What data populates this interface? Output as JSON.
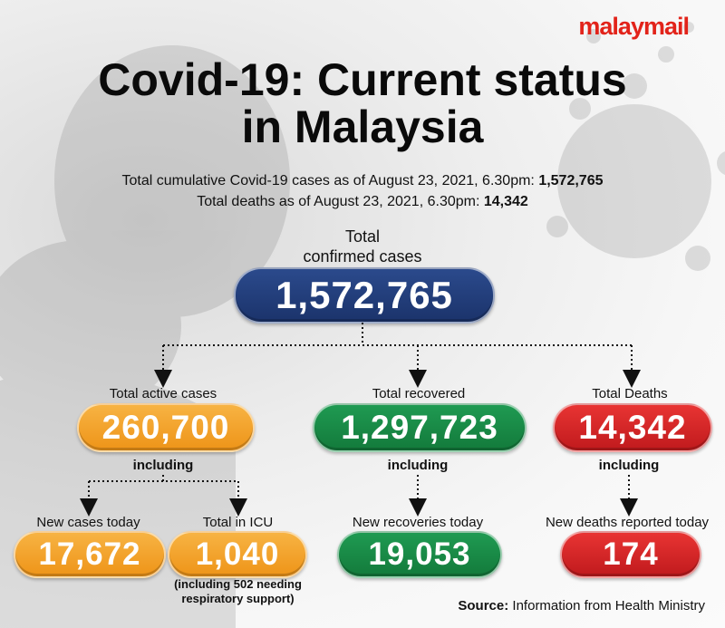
{
  "brand": {
    "logo_text": "malaymail",
    "logo_color": "#e2231a"
  },
  "title": {
    "line1": "Covid-19: Current status",
    "line2": "in Malaysia"
  },
  "subtitle": {
    "cumulative_prefix": "Total cumulative Covid-19 cases as of August 23, 2021, 6.30pm:",
    "cumulative_value": "1,572,765",
    "deaths_prefix": "Total deaths as of August 23, 2021, 6.30pm:",
    "deaths_value": "14,342"
  },
  "total": {
    "label_line1": "Total",
    "label_line2": "confirmed cases",
    "value": "1,572,765"
  },
  "active": {
    "label": "Total active cases",
    "value": "260,700",
    "including": "including",
    "new_cases": {
      "label": "New cases today",
      "value": "17,672"
    },
    "icu": {
      "label": "Total in ICU",
      "value": "1,040",
      "note_line1": "(including 502 needing",
      "note_line2": "respiratory support)"
    }
  },
  "recovered": {
    "label": "Total recovered",
    "value": "1,297,723",
    "including": "including",
    "new": {
      "label": "New recoveries today",
      "value": "19,053"
    }
  },
  "deaths": {
    "label": "Total Deaths",
    "value": "14,342",
    "including": "including",
    "new": {
      "label": "New deaths reported today",
      "value": "174"
    }
  },
  "source": {
    "prefix": "Source:",
    "text": "Information from Health Ministry"
  },
  "colors": {
    "navy": "#1f3a78",
    "orange": "#f2a02a",
    "green": "#178846",
    "red": "#d42426"
  }
}
